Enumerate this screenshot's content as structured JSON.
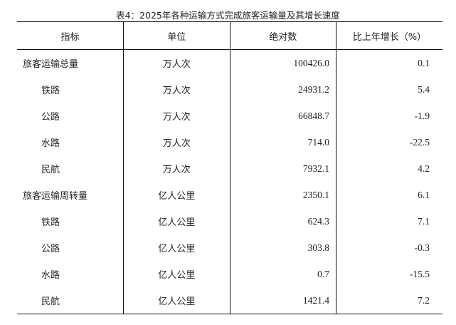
{
  "title": "表4：2025年各种运输方式完成旅客运输量及其增长速度",
  "headers": [
    "指标",
    "单位",
    "绝对数",
    "比上年增长（%）"
  ],
  "rows": [
    {
      "indicator": "旅客运输总量",
      "unit": "万人次",
      "value": "100426.0",
      "growth": "0.1",
      "sub": false
    },
    {
      "indicator": "铁路",
      "unit": "万人次",
      "value": "24931.2",
      "growth": "5.4",
      "sub": true
    },
    {
      "indicator": "公路",
      "unit": "万人次",
      "value": "66848.7",
      "growth": "-1.9",
      "sub": true
    },
    {
      "indicator": "水路",
      "unit": "万人次",
      "value": "714.0",
      "growth": "-22.5",
      "sub": true
    },
    {
      "indicator": "民航",
      "unit": "万人次",
      "value": "7932.1",
      "growth": "4.2",
      "sub": true
    },
    {
      "indicator": "旅客运输周转量",
      "unit": "亿人公里",
      "value": "2350.1",
      "growth": "6.1",
      "sub": false
    },
    {
      "indicator": "铁路",
      "unit": "亿人公里",
      "value": "624.3",
      "growth": "7.1",
      "sub": true
    },
    {
      "indicator": "公路",
      "unit": "亿人公里",
      "value": "303.8",
      "growth": "-0.3",
      "sub": true
    },
    {
      "indicator": "水路",
      "unit": "亿人公里",
      "value": "0.7",
      "growth": "-15.5",
      "sub": true
    },
    {
      "indicator": "民航",
      "unit": "亿人公里",
      "value": "1421.4",
      "growth": "7.2",
      "sub": true
    }
  ]
}
